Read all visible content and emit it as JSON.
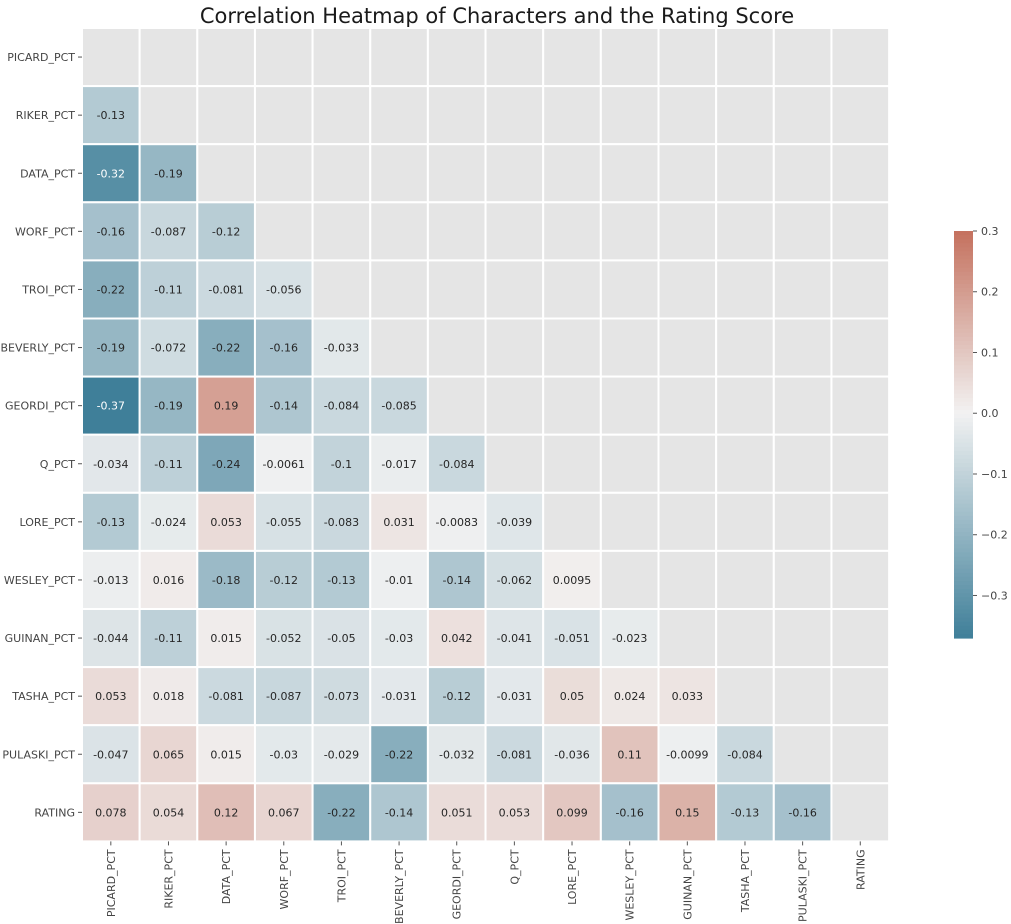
{
  "chart_data": {
    "type": "heatmap",
    "title": "Correlation Heatmap of Characters and the Rating Score",
    "xlabel": "",
    "ylabel": "",
    "x_categories": [
      "PICARD_PCT",
      "RIKER_PCT",
      "DATA_PCT",
      "WORF_PCT",
      "TROI_PCT",
      "BEVERLY_PCT",
      "GEORDI_PCT",
      "Q_PCT",
      "LORE_PCT",
      "WESLEY_PCT",
      "GUINAN_PCT",
      "TASHA_PCT",
      "PULASKI_PCT",
      "RATING"
    ],
    "y_categories": [
      "PICARD_PCT",
      "RIKER_PCT",
      "DATA_PCT",
      "WORF_PCT",
      "TROI_PCT",
      "BEVERLY_PCT",
      "GEORDI_PCT",
      "Q_PCT",
      "LORE_PCT",
      "WESLEY_PCT",
      "GUINAN_PCT",
      "TASHA_PCT",
      "PULASKI_PCT",
      "RATING"
    ],
    "mask": "upper-triangle-including-diagonal",
    "values": [
      [],
      [
        "-0.13"
      ],
      [
        "-0.32",
        "-0.19"
      ],
      [
        "-0.16",
        "-0.087",
        "-0.12"
      ],
      [
        "-0.22",
        "-0.11",
        "-0.081",
        "-0.056"
      ],
      [
        "-0.19",
        "-0.072",
        "-0.22",
        "-0.16",
        "-0.033"
      ],
      [
        "-0.37",
        "-0.19",
        "0.19",
        "-0.14",
        "-0.084",
        "-0.085"
      ],
      [
        "-0.034",
        "-0.11",
        "-0.24",
        "-0.0061",
        "-0.1",
        "-0.017",
        "-0.084"
      ],
      [
        "-0.13",
        "-0.024",
        "0.053",
        "-0.055",
        "-0.083",
        "0.031",
        "-0.0083",
        "-0.039"
      ],
      [
        "-0.013",
        "0.016",
        "-0.18",
        "-0.12",
        "-0.13",
        "-0.01",
        "-0.14",
        "-0.062",
        "0.0095"
      ],
      [
        "-0.044",
        "-0.11",
        "0.015",
        "-0.052",
        "-0.05",
        "-0.03",
        "0.042",
        "-0.041",
        "-0.051",
        "-0.023"
      ],
      [
        "0.053",
        "0.018",
        "-0.081",
        "-0.087",
        "-0.073",
        "-0.031",
        "-0.12",
        "-0.031",
        "0.05",
        "0.024",
        "0.033"
      ],
      [
        "-0.047",
        "0.065",
        "0.015",
        "-0.03",
        "-0.029",
        "-0.22",
        "-0.032",
        "-0.081",
        "-0.036",
        "0.11",
        "-0.0099",
        "-0.084"
      ],
      [
        "0.078",
        "0.054",
        "0.12",
        "0.067",
        "-0.22",
        "-0.14",
        "0.051",
        "0.053",
        "0.099",
        "-0.16",
        "0.15",
        "-0.13",
        "-0.16"
      ]
    ],
    "vmin": -0.37,
    "vmax": 0.3,
    "colorbar": {
      "ticks": [
        -0.3,
        -0.2,
        -0.1,
        0.0,
        0.1,
        0.2,
        0.3
      ],
      "tick_labels": [
        "−0.3",
        "−0.2",
        "−0.1",
        "0.0",
        "0.1",
        "0.2",
        "0.3"
      ],
      "placement": "right"
    },
    "colors": {
      "negative": "#3f7f99",
      "center": "#f2f2f2",
      "positive": "#c4715e",
      "masked": "#e5e5e5",
      "grid": "#ffffff"
    }
  }
}
